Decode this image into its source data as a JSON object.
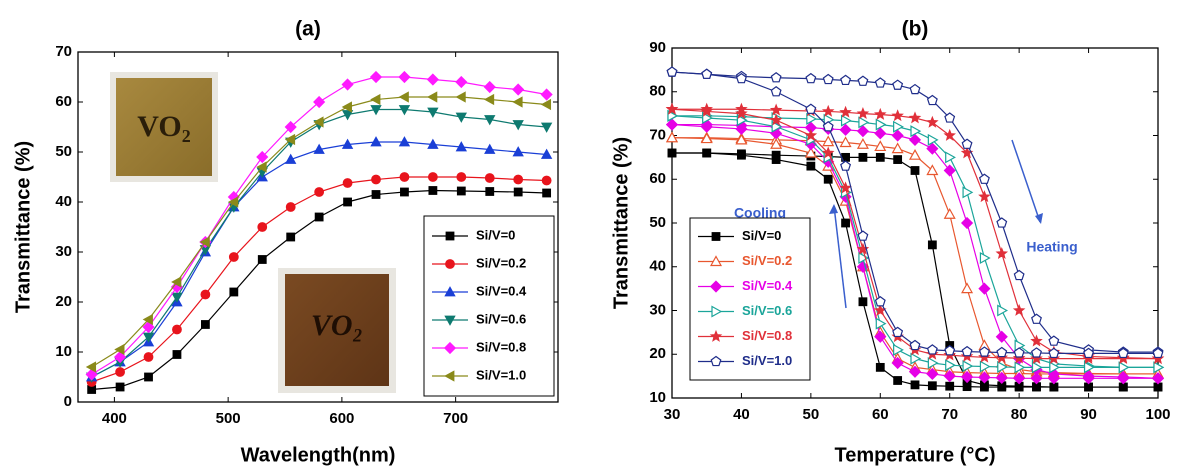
{
  "chart_data": [
    {
      "type": "line",
      "title": "(a)",
      "xlabel": "Wavelength(nm)",
      "ylabel": "Transmittance (%)",
      "x": [
        380,
        405,
        430,
        455,
        480,
        505,
        530,
        555,
        580,
        605,
        630,
        655,
        680,
        705,
        730,
        755,
        780
      ],
      "xlim": [
        368,
        790
      ],
      "ylim": [
        0,
        70
      ],
      "xticks": [
        400,
        500,
        600,
        700
      ],
      "yticks": [
        0,
        10,
        20,
        30,
        40,
        50,
        60,
        70
      ],
      "legend": "lower right",
      "insets": [
        "VO₂",
        "VO₂"
      ],
      "series": [
        {
          "name": "Si/V=0",
          "color": "#000000",
          "marker": "square",
          "values": [
            2.5,
            3,
            5,
            9.5,
            15.5,
            22,
            28.5,
            33,
            37,
            40,
            41.5,
            42,
            42.3,
            42.2,
            42.1,
            42,
            41.8
          ]
        },
        {
          "name": "Si/V=0.2",
          "color": "#e8141c",
          "marker": "circle",
          "values": [
            4,
            6,
            9,
            14.5,
            21.5,
            29,
            35,
            39,
            42,
            43.8,
            44.5,
            45,
            45,
            45,
            44.8,
            44.5,
            44.3
          ]
        },
        {
          "name": "Si/V=0.4",
          "color": "#1a3fd6",
          "marker": "triangle-up",
          "values": [
            5,
            8,
            12,
            20,
            30,
            39,
            45,
            48.5,
            50.5,
            51.5,
            52,
            52,
            51.5,
            51,
            50.5,
            50,
            49.5
          ]
        },
        {
          "name": "Si/V=0.6",
          "color": "#0e7a70",
          "marker": "triangle-down",
          "values": [
            5,
            8,
            13,
            21,
            30.5,
            39,
            46,
            52,
            55.5,
            57.5,
            58.5,
            58.5,
            58,
            57,
            56.5,
            55.5,
            55
          ]
        },
        {
          "name": "Si/V=0.8",
          "color": "#ff1aff",
          "marker": "diamond",
          "values": [
            5.5,
            9,
            15,
            23,
            32,
            41,
            49,
            55,
            60,
            63.5,
            65,
            65,
            64.5,
            64,
            63,
            62.5,
            61.5
          ]
        },
        {
          "name": "Si/V=1.0",
          "color": "#8a8a1a",
          "marker": "triangle-left",
          "values": [
            7,
            10.5,
            16.5,
            24,
            32,
            40,
            47,
            52.5,
            56,
            59,
            60.5,
            61,
            61,
            61,
            60.5,
            60,
            59.5
          ]
        }
      ]
    },
    {
      "type": "hysteresis",
      "title": "(b)",
      "xlabel": "Temperature (°C)",
      "ylabel": "Transmittance (%)",
      "x": [
        30,
        35,
        40,
        45,
        50,
        52.5,
        55,
        57.5,
        60,
        62.5,
        65,
        67.5,
        70,
        72.5,
        75,
        77.5,
        80,
        82.5,
        85,
        90,
        95,
        100
      ],
      "xlim": [
        30,
        100
      ],
      "ylim": [
        10,
        90
      ],
      "xticks": [
        30,
        40,
        50,
        60,
        70,
        80,
        90,
        100
      ],
      "yticks": [
        10,
        20,
        30,
        40,
        50,
        60,
        70,
        80,
        90
      ],
      "legend": "lower left",
      "annotations": [
        "Cooling",
        "Heating"
      ],
      "series": [
        {
          "name": "Si/V=0",
          "color": "#000000",
          "marker": "square",
          "values": [
            66,
            66,
            65.8,
            65.5,
            65.3,
            65.2,
            65,
            65,
            65,
            64.5,
            62,
            45,
            22,
            14,
            13,
            12.8,
            12.7,
            12.6,
            12.5,
            12.5,
            12.5,
            12.5
          ],
          "cooling": [
            66,
            66,
            65.5,
            64.5,
            63,
            60,
            50,
            32,
            17,
            14,
            13,
            12.8,
            12.7,
            12.6,
            12.5,
            12.5,
            12.5,
            12.5,
            12.5,
            12.5,
            12.5,
            12.5
          ]
        },
        {
          "name": "Si/V=0.2",
          "color": "#e8572f",
          "marker": "triangle-up-open",
          "values": [
            69.5,
            69.5,
            69.3,
            69,
            68.8,
            68.6,
            68.4,
            68,
            67.5,
            67,
            65.5,
            62,
            52,
            35,
            22,
            18,
            16.5,
            16,
            15.8,
            15.6,
            15.5,
            15.5
          ],
          "cooling": [
            69.5,
            69.3,
            69,
            68,
            66,
            63,
            55,
            40,
            25,
            19,
            17,
            16.5,
            16,
            15.8,
            15.7,
            15.6,
            15.6,
            15.5,
            15.5,
            15.5,
            15.5,
            15.5
          ]
        },
        {
          "name": "Si/V=0.4",
          "color": "#e600e6",
          "marker": "diamond",
          "values": [
            72.5,
            72.5,
            72.3,
            72,
            71.8,
            71.5,
            71.3,
            71,
            70.5,
            70,
            69,
            67,
            62,
            50,
            35,
            24,
            19,
            16.5,
            15.5,
            15,
            14.8,
            14.5
          ],
          "cooling": [
            72.5,
            72,
            71.5,
            70.5,
            68,
            64,
            56,
            40,
            24,
            18,
            16,
            15.5,
            15,
            14.8,
            14.7,
            14.6,
            14.5,
            14.5,
            14.5,
            14.5,
            14.5,
            14.5
          ]
        },
        {
          "name": "Si/V=0.6",
          "color": "#1ba59a",
          "marker": "triangle-right-open",
          "values": [
            74.5,
            74.5,
            74.3,
            74,
            73.8,
            73.6,
            73.4,
            73,
            72.5,
            72,
            71,
            69,
            65,
            57,
            42,
            30,
            22,
            19,
            17.8,
            17.3,
            17,
            17
          ],
          "cooling": [
            74.5,
            74,
            73.5,
            72,
            69,
            65,
            57,
            42,
            27,
            21,
            19,
            18,
            17.5,
            17.3,
            17.2,
            17.1,
            17,
            17,
            17,
            17,
            17,
            17
          ]
        },
        {
          "name": "Si/V=0.8",
          "color": "#e0303a",
          "marker": "star",
          "values": [
            76,
            76,
            76,
            75.8,
            75.6,
            75.5,
            75.3,
            75,
            74.8,
            74.5,
            74,
            73,
            70,
            66,
            56,
            43,
            30,
            23,
            20.5,
            19.5,
            19.2,
            19
          ],
          "cooling": [
            76,
            75.5,
            75,
            73.5,
            70,
            66,
            58,
            44,
            30,
            24,
            21,
            20,
            19.8,
            19.5,
            19.3,
            19.2,
            19.1,
            19,
            19,
            19,
            19,
            19
          ]
        },
        {
          "name": "Si/V=1.0",
          "color": "#1f2d8a",
          "marker": "pentagon-open",
          "values": [
            84.5,
            84,
            83.5,
            83.2,
            83,
            82.8,
            82.6,
            82.4,
            82,
            81.5,
            80.5,
            78,
            74,
            68,
            60,
            50,
            38,
            28,
            23,
            21,
            20.5,
            20.5
          ],
          "cooling": [
            84.5,
            84,
            83,
            80,
            76,
            72,
            63,
            47,
            32,
            25,
            22,
            21,
            20.8,
            20.6,
            20.5,
            20.4,
            20.3,
            20.3,
            20.2,
            20.2,
            20.2,
            20.2
          ]
        }
      ]
    }
  ]
}
